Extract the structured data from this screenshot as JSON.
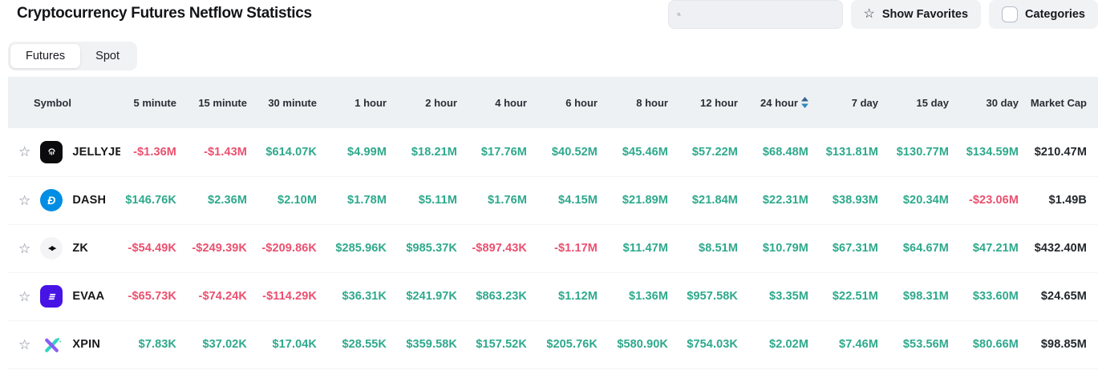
{
  "header": {
    "title": "Cryptocurrency Futures Netflow Statistics",
    "show_favorites_label": "Show Favorites",
    "categories_label": "Categories"
  },
  "tabs": [
    {
      "label": "Futures",
      "active": true
    },
    {
      "label": "Spot",
      "active": false
    }
  ],
  "colors": {
    "positive": "#2ea98c",
    "negative": "#eb506f",
    "sort_up": "#33618c",
    "sort_down": "#2e86c1"
  },
  "table": {
    "columns": [
      "Symbol",
      "5 minute",
      "15 minute",
      "30 minute",
      "1 hour",
      "2 hour",
      "4 hour",
      "6 hour",
      "8 hour",
      "12 hour",
      "24 hour",
      "7 day",
      "15 day",
      "30 day",
      "Market Cap"
    ],
    "sorted_column": "24 hour",
    "rows": [
      {
        "symbol": "JELLYJELLY",
        "icon": "jellyjelly",
        "values": [
          "-$1.36M",
          "-$1.43M",
          "$614.07K",
          "$4.99M",
          "$18.21M",
          "$17.76M",
          "$40.52M",
          "$45.46M",
          "$57.22M",
          "$68.48M",
          "$131.81M",
          "$130.77M",
          "$134.59M"
        ],
        "market_cap": "$210.47M"
      },
      {
        "symbol": "DASH",
        "icon": "dash",
        "values": [
          "$146.76K",
          "$2.36M",
          "$2.10M",
          "$1.78M",
          "$5.11M",
          "$1.76M",
          "$4.15M",
          "$21.89M",
          "$21.84M",
          "$22.31M",
          "$38.93M",
          "$20.34M",
          "-$23.06M"
        ],
        "market_cap": "$1.49B"
      },
      {
        "symbol": "ZK",
        "icon": "zk",
        "values": [
          "-$54.49K",
          "-$249.39K",
          "-$209.86K",
          "$285.96K",
          "$985.37K",
          "-$897.43K",
          "-$1.17M",
          "$11.47M",
          "$8.51M",
          "$10.79M",
          "$67.31M",
          "$64.67M",
          "$47.21M"
        ],
        "market_cap": "$432.40M"
      },
      {
        "symbol": "EVAA",
        "icon": "evaa",
        "values": [
          "-$65.73K",
          "-$74.24K",
          "-$114.29K",
          "$36.31K",
          "$241.97K",
          "$863.23K",
          "$1.12M",
          "$1.36M",
          "$957.58K",
          "$3.35M",
          "$22.51M",
          "$98.31M",
          "$33.60M"
        ],
        "market_cap": "$24.65M"
      },
      {
        "symbol": "XPIN",
        "icon": "xpin",
        "values": [
          "$7.83K",
          "$37.02K",
          "$17.04K",
          "$28.55K",
          "$359.58K",
          "$157.52K",
          "$205.76K",
          "$580.90K",
          "$754.03K",
          "$2.02M",
          "$7.46M",
          "$53.56M",
          "$80.66M"
        ],
        "market_cap": "$98.85M"
      }
    ]
  }
}
